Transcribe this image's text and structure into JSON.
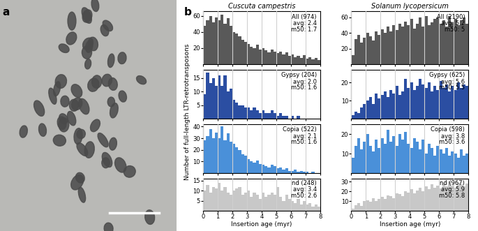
{
  "panel_labels": [
    "a",
    "b"
  ],
  "xlabel": "Insertion age (myr)",
  "ylabel": "Number of full-length LTR-retrotransposons",
  "chart_data": [
    {
      "type": "histogram",
      "column": "Cuscuta campestris",
      "row": 0,
      "col": 0,
      "color": "#595959",
      "annotation": [
        "All (974)",
        "avg: 2.4",
        "m50: 1.7"
      ],
      "bins": [
        0,
        0.2,
        0.4,
        0.6,
        0.8,
        1,
        1.2,
        1.4,
        1.6,
        1.8,
        2,
        2.2,
        2.4,
        2.6,
        2.8,
        3,
        3.2,
        3.4,
        3.6,
        3.8,
        4,
        4.2,
        4.4,
        4.6,
        4.8,
        5,
        5.2,
        5.4,
        5.6,
        5.8,
        6,
        6.2,
        6.4,
        6.6,
        6.8,
        7,
        7.2,
        7.4,
        7.6,
        7.8,
        8
      ],
      "counts": [
        48,
        55,
        60,
        52,
        58,
        55,
        62,
        50,
        57,
        48,
        40,
        38,
        35,
        30,
        28,
        25,
        22,
        20,
        24,
        18,
        20,
        17,
        15,
        18,
        16,
        14,
        16,
        12,
        15,
        10,
        12,
        9,
        10,
        8,
        11,
        7,
        9,
        6,
        8,
        5
      ],
      "xlim": [
        0,
        8
      ],
      "xticks": [
        0,
        1,
        2,
        3,
        4,
        5,
        6,
        7,
        8
      ],
      "ylim": [
        0,
        66
      ],
      "yticks": [
        20,
        40,
        60
      ],
      "grid": "x",
      "tick_labels": "y"
    },
    {
      "type": "histogram",
      "column": "Cuscuta campestris",
      "row": 1,
      "col": 0,
      "color": "#2b4ea2",
      "annotation": [
        "Gypsy (204)",
        "avg: 2.0",
        "m50: 1.6"
      ],
      "bins": [
        0,
        0.2,
        0.4,
        0.6,
        0.8,
        1,
        1.2,
        1.4,
        1.6,
        1.8,
        2,
        2.2,
        2.4,
        2.6,
        2.8,
        3,
        3.2,
        3.4,
        3.6,
        3.8,
        4,
        4.2,
        4.4,
        4.6,
        4.8,
        5,
        5.2,
        5.4,
        5.6,
        5.8,
        6,
        6.2,
        6.4,
        6.6,
        6.8,
        7,
        7.2,
        7.4,
        7.6,
        7.8,
        8
      ],
      "counts": [
        9,
        17,
        13,
        15,
        12,
        16,
        12,
        16,
        10,
        11,
        7,
        6,
        5,
        5,
        4,
        4,
        3,
        4,
        3,
        2,
        3,
        2,
        2,
        3,
        2,
        1,
        2,
        1,
        1,
        0,
        1,
        0,
        1,
        0,
        0,
        0,
        0,
        0,
        0,
        0
      ],
      "xlim": [
        0,
        8
      ],
      "xticks": [
        0,
        1,
        2,
        3,
        4,
        5,
        6,
        7,
        8
      ],
      "ylim": [
        0,
        18
      ],
      "yticks": [
        5,
        10,
        15
      ],
      "grid": "x",
      "tick_labels": "y"
    },
    {
      "type": "histogram",
      "column": "Cuscuta campestris",
      "row": 2,
      "col": 0,
      "color": "#4a90d9",
      "annotation": [
        "Copia (522)",
        "avg: 2.1",
        "m50: 1.6"
      ],
      "bins": [
        0,
        0.2,
        0.4,
        0.6,
        0.8,
        1,
        1.2,
        1.4,
        1.6,
        1.8,
        2,
        2.2,
        2.4,
        2.6,
        2.8,
        3,
        3.2,
        3.4,
        3.6,
        3.8,
        4,
        4.2,
        4.4,
        4.6,
        4.8,
        5,
        5.2,
        5.4,
        5.6,
        5.8,
        6,
        6.2,
        6.4,
        6.6,
        6.8,
        7,
        7.2,
        7.4,
        7.6,
        7.8,
        8
      ],
      "counts": [
        28,
        32,
        38,
        30,
        35,
        30,
        40,
        28,
        34,
        27,
        25,
        22,
        20,
        16,
        15,
        12,
        10,
        9,
        11,
        8,
        7,
        6,
        5,
        7,
        6,
        4,
        5,
        3,
        4,
        2,
        2,
        3,
        1,
        2,
        1,
        1,
        0,
        1,
        0,
        0
      ],
      "xlim": [
        0,
        8
      ],
      "xticks": [
        0,
        1,
        2,
        3,
        4,
        5,
        6,
        7,
        8
      ],
      "ylim": [
        0,
        42
      ],
      "yticks": [
        10,
        20,
        30,
        40
      ],
      "grid": "x",
      "tick_labels": "y"
    },
    {
      "type": "histogram",
      "column": "Cuscuta campestris",
      "row": 3,
      "col": 0,
      "color": "#c8c8c8",
      "annotation": [
        "nd (248)",
        "avg: 3.4",
        "m50: 2.6"
      ],
      "bins": [
        0,
        0.2,
        0.4,
        0.6,
        0.8,
        1,
        1.2,
        1.4,
        1.6,
        1.8,
        2,
        2.2,
        2.4,
        2.6,
        2.8,
        3,
        3.2,
        3.4,
        3.6,
        3.8,
        4,
        4.2,
        4.4,
        4.6,
        4.8,
        5,
        5.2,
        5.4,
        5.6,
        5.8,
        6,
        6.2,
        6.4,
        6.6,
        6.8,
        7,
        7.2,
        7.4,
        7.6,
        7.8,
        8
      ],
      "counts": [
        10,
        13,
        9,
        12,
        11,
        14,
        10,
        12,
        9,
        8,
        10,
        11,
        12,
        8,
        9,
        10,
        7,
        9,
        8,
        6,
        9,
        7,
        8,
        9,
        8,
        12,
        7,
        5,
        8,
        6,
        5,
        4,
        6,
        3,
        5,
        3,
        4,
        2,
        3,
        2
      ],
      "xlim": [
        0,
        8
      ],
      "xticks": [
        0,
        1,
        2,
        3,
        4,
        5,
        6,
        7,
        8
      ],
      "ylim": [
        0,
        16
      ],
      "yticks": [
        5,
        10,
        15
      ],
      "grid": "x"
    },
    {
      "type": "histogram",
      "column": "Solanum lycopersicum",
      "row": 0,
      "col": 1,
      "color": "#595959",
      "annotation": [
        "All (2190)",
        "avg: 5.2",
        "m50: 5"
      ],
      "bins": [
        0,
        0.2,
        0.4,
        0.6,
        0.8,
        1,
        1.2,
        1.4,
        1.6,
        1.8,
        2,
        2.2,
        2.4,
        2.6,
        2.8,
        3,
        3.2,
        3.4,
        3.6,
        3.8,
        4,
        4.2,
        4.4,
        4.6,
        4.8,
        5,
        5.2,
        5.4,
        5.6,
        5.8,
        6,
        6.2,
        6.4,
        6.6,
        6.8,
        7,
        7.2,
        7.4,
        7.6,
        7.8,
        8
      ],
      "counts": [
        12,
        32,
        38,
        28,
        34,
        40,
        36,
        30,
        42,
        38,
        45,
        40,
        48,
        42,
        50,
        44,
        52,
        48,
        55,
        50,
        58,
        46,
        52,
        60,
        48,
        62,
        50,
        54,
        58,
        60,
        52,
        56,
        48,
        62,
        54,
        58,
        50,
        56,
        60,
        52
      ],
      "xlim": [
        0,
        8
      ],
      "xticks": [
        0,
        1,
        2,
        3,
        4,
        5,
        6,
        7,
        8
      ],
      "ylim": [
        0,
        68
      ],
      "yticks": [
        20,
        40,
        60
      ],
      "grid": "x",
      "tick_labels": "y"
    },
    {
      "type": "histogram",
      "column": "Solanum lycopersicum",
      "row": 1,
      "col": 1,
      "color": "#2b4ea2",
      "annotation": [
        "Gypsy (625)",
        "avg: 5.6",
        "m50: 5.5"
      ],
      "bins": [
        0,
        0.2,
        0.4,
        0.6,
        0.8,
        1,
        1.2,
        1.4,
        1.6,
        1.8,
        2,
        2.2,
        2.4,
        2.6,
        2.8,
        3,
        3.2,
        3.4,
        3.6,
        3.8,
        4,
        4.2,
        4.4,
        4.6,
        4.8,
        5,
        5.2,
        5.4,
        5.6,
        5.8,
        6,
        6.2,
        6.4,
        6.6,
        6.8,
        7,
        7.2,
        7.4,
        7.6,
        7.8,
        8
      ],
      "counts": [
        2,
        4,
        3,
        6,
        8,
        10,
        12,
        8,
        14,
        11,
        13,
        15,
        12,
        16,
        14,
        18,
        13,
        15,
        22,
        17,
        20,
        16,
        18,
        22,
        19,
        17,
        20,
        15,
        18,
        16,
        21,
        17,
        19,
        15,
        18,
        16,
        20,
        17,
        19,
        18
      ],
      "xlim": [
        0,
        8
      ],
      "xticks": [
        0,
        1,
        2,
        3,
        4,
        5,
        6,
        7,
        8
      ],
      "ylim": [
        0,
        27
      ],
      "yticks": [
        10,
        20
      ],
      "grid": "x",
      "tick_labels": "y"
    },
    {
      "type": "histogram",
      "column": "Solanum lycopersicum",
      "row": 2,
      "col": 1,
      "color": "#4a90d9",
      "annotation": [
        "Copia (598)",
        "avg: 3.8",
        "m50: 3.6"
      ],
      "bins": [
        0,
        0.2,
        0.4,
        0.6,
        0.8,
        1,
        1.2,
        1.4,
        1.6,
        1.8,
        2,
        2.2,
        2.4,
        2.6,
        2.8,
        3,
        3.2,
        3.4,
        3.6,
        3.8,
        4,
        4.2,
        4.4,
        4.6,
        4.8,
        5,
        5.2,
        5.4,
        5.6,
        5.8,
        6,
        6.2,
        6.4,
        6.6,
        6.8,
        7,
        7.2,
        7.4,
        7.6,
        7.8,
        8
      ],
      "counts": [
        8,
        14,
        18,
        12,
        16,
        20,
        14,
        11,
        17,
        13,
        18,
        15,
        22,
        16,
        19,
        14,
        20,
        17,
        21,
        15,
        13,
        18,
        16,
        12,
        17,
        10,
        15,
        13,
        9,
        14,
        12,
        10,
        13,
        9,
        11,
        10,
        8,
        12,
        9,
        10
      ],
      "xlim": [
        0,
        8
      ],
      "xticks": [
        0,
        1,
        2,
        3,
        4,
        5,
        6,
        7,
        8
      ],
      "ylim": [
        0,
        25
      ],
      "yticks": [
        10,
        20
      ],
      "grid": "x",
      "tick_labels": "y"
    },
    {
      "type": "histogram",
      "column": "Solanum lycopersicum",
      "row": 3,
      "col": 1,
      "color": "#c8c8c8",
      "annotation": [
        "nd (967)",
        "avg: 5.9",
        "m50: 5.8"
      ],
      "bins": [
        0,
        0.2,
        0.4,
        0.6,
        0.8,
        1,
        1.2,
        1.4,
        1.6,
        1.8,
        2,
        2.2,
        2.4,
        2.6,
        2.8,
        3,
        3.2,
        3.4,
        3.6,
        3.8,
        4,
        4.2,
        4.4,
        4.6,
        4.8,
        5,
        5.2,
        5.4,
        5.6,
        5.8,
        6,
        6.2,
        6.4,
        6.6,
        6.8,
        7,
        7.2,
        7.4,
        7.6,
        7.8,
        8
      ],
      "counts": [
        2,
        6,
        8,
        5,
        10,
        11,
        9,
        13,
        10,
        12,
        14,
        12,
        16,
        15,
        13,
        18,
        17,
        15,
        20,
        19,
        22,
        18,
        21,
        24,
        20,
        25,
        22,
        27,
        24,
        26,
        23,
        28,
        25,
        30,
        26,
        24,
        29,
        27,
        25,
        28
      ],
      "xlim": [
        0,
        8
      ],
      "xticks": [
        0,
        1,
        2,
        3,
        4,
        5,
        6,
        7,
        8
      ],
      "ylim": [
        0,
        33
      ],
      "yticks": [
        10,
        20,
        30
      ],
      "grid": "x"
    }
  ]
}
